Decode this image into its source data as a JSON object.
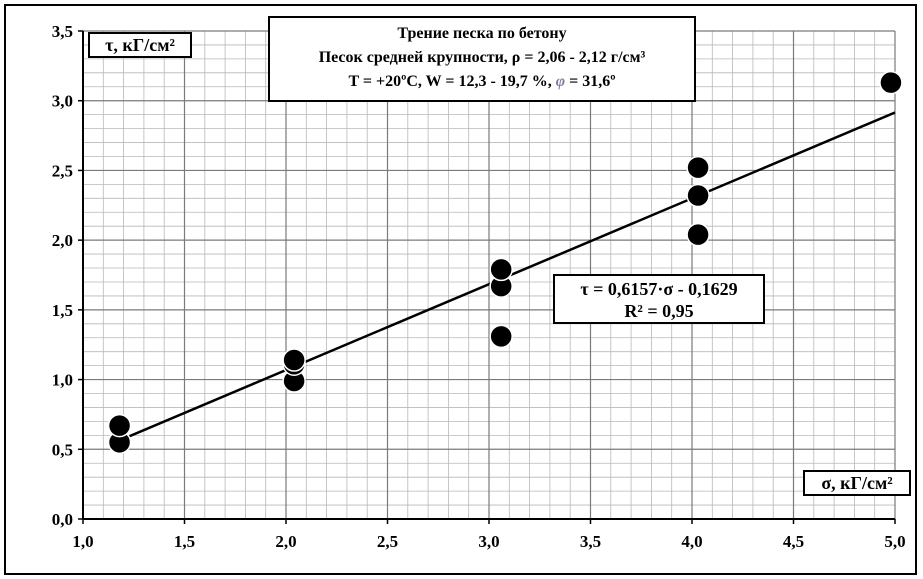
{
  "chart_data": {
    "type": "scatter",
    "title": {
      "line1": "Трение песка по бетону",
      "line2": "Песок средней крупности, ρ = 2,06 - 2,12 г/см³",
      "line3_prefix": "T = +20ºC, W = 12,3 - 19,7 %, ",
      "phi_symbol": "φ",
      "line3_suffix": " = 31,6º"
    },
    "xlabel": "σ, кГ/см²",
    "ylabel": "τ, кГ/см²",
    "xlim": [
      1.0,
      5.0
    ],
    "ylim": [
      0.0,
      3.5
    ],
    "x_ticks": [
      "1,0",
      "1,5",
      "2,0",
      "2,5",
      "3,0",
      "3,5",
      "4,0",
      "4,5",
      "5,0"
    ],
    "y_ticks": [
      "0,0",
      "0,5",
      "1,0",
      "1,5",
      "2,0",
      "2,5",
      "3,0",
      "3,5"
    ],
    "x_tick_values": [
      1.0,
      1.5,
      2.0,
      2.5,
      3.0,
      3.5,
      4.0,
      4.5,
      5.0
    ],
    "y_tick_values": [
      0.0,
      0.5,
      1.0,
      1.5,
      2.0,
      2.5,
      3.0,
      3.5
    ],
    "grid": true,
    "points": [
      {
        "x": 1.18,
        "y": 0.55
      },
      {
        "x": 1.18,
        "y": 0.67
      },
      {
        "x": 2.04,
        "y": 0.99
      },
      {
        "x": 2.04,
        "y": 1.11
      },
      {
        "x": 2.04,
        "y": 1.14
      },
      {
        "x": 3.06,
        "y": 1.31
      },
      {
        "x": 3.06,
        "y": 1.67
      },
      {
        "x": 3.06,
        "y": 1.79
      },
      {
        "x": 4.03,
        "y": 2.04
      },
      {
        "x": 4.03,
        "y": 2.32
      },
      {
        "x": 4.03,
        "y": 2.52
      },
      {
        "x": 4.98,
        "y": 3.13
      }
    ],
    "trendline": {
      "slope": 0.6157,
      "intercept": -0.1629,
      "x_range": [
        1.18,
        5.0
      ],
      "equation_label": "τ = 0,6157·σ - 0,1629",
      "r2_label": "R² = 0,95"
    }
  }
}
